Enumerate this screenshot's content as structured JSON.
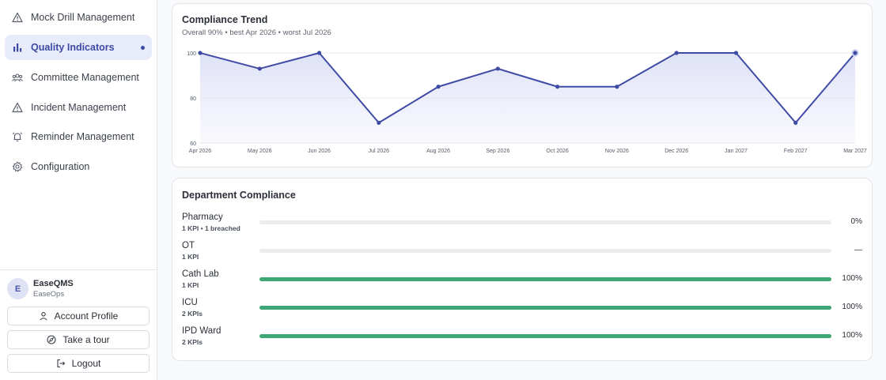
{
  "sidebar": {
    "items": [
      {
        "label": "Mock Drill Management",
        "icon": "warning-triangle-icon"
      },
      {
        "label": "Quality Indicators",
        "icon": "bar-chart-icon",
        "active": true
      },
      {
        "label": "Committee Management",
        "icon": "users-group-icon"
      },
      {
        "label": "Incident Management",
        "icon": "warning-triangle-icon"
      },
      {
        "label": "Reminder Management",
        "icon": "bell-ring-icon"
      },
      {
        "label": "Configuration",
        "icon": "gear-icon"
      }
    ],
    "user": {
      "initial": "E",
      "name": "EaseQMS",
      "org": "EaseOps"
    },
    "buttons": {
      "account": "Account Profile",
      "tour": "Take a tour",
      "logout": "Logout"
    }
  },
  "trend": {
    "title": "Compliance Trend",
    "subtitle": "Overall 90% • best Apr 2026 • worst Jul 2026"
  },
  "chart_data": {
    "type": "area",
    "title": "Compliance Trend",
    "categories": [
      "Apr 2026",
      "May 2026",
      "Jun 2026",
      "Jul 2026",
      "Aug 2026",
      "Sep 2026",
      "Oct 2026",
      "Nov 2026",
      "Dec 2026",
      "Jan 2027",
      "Feb 2027",
      "Mar 2027"
    ],
    "values": [
      100,
      93,
      100,
      69,
      85,
      93,
      85,
      85,
      100,
      100,
      69,
      100
    ],
    "ylim": [
      60,
      100
    ],
    "yticks": [
      60,
      80,
      100
    ],
    "grid": true,
    "colors": {
      "line": "#3f4ba5",
      "area": "#dfe2f6"
    }
  },
  "departments": {
    "title": "Department Compliance",
    "rows": [
      {
        "name": "Pharmacy",
        "sub": "1 KPI • 1 breached",
        "value": 0,
        "label": "0%"
      },
      {
        "name": "OT",
        "sub": "1 KPI",
        "value": null,
        "label": "—"
      },
      {
        "name": "Cath Lab",
        "sub": "1 KPI",
        "value": 100,
        "label": "100%"
      },
      {
        "name": "ICU",
        "sub": "2 KPIs",
        "value": 100,
        "label": "100%"
      },
      {
        "name": "IPD Ward",
        "sub": "2 KPIs",
        "value": 100,
        "label": "100%"
      }
    ],
    "bar_color": "#3ea574"
  }
}
